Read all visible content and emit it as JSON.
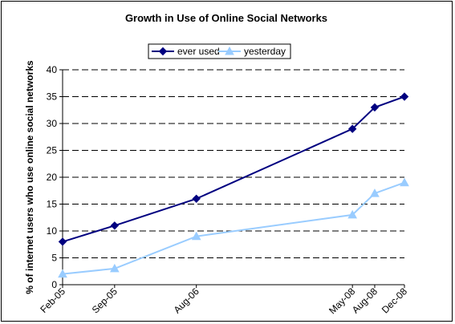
{
  "chart_data": {
    "type": "line",
    "title": "Growth in Use of Online Social Networks",
    "ylabel": "% of internet users who use online social networks",
    "xlabel": "",
    "ylim": [
      0,
      40
    ],
    "yticks": [
      0,
      5,
      10,
      15,
      20,
      25,
      30,
      35,
      40
    ],
    "x_dates": [
      "2005-02",
      "2005-09",
      "2006-08",
      "2008-05",
      "2008-08",
      "2008-12"
    ],
    "categories": [
      "Feb-05",
      "Sep-05",
      "Aug-06",
      "May-08",
      "Aug-08",
      "Dec-08"
    ],
    "grid": "horizontal dashed",
    "legend_position": "top",
    "series": [
      {
        "name": "ever used",
        "color": "#000080",
        "marker": "diamond",
        "values": [
          8,
          11,
          16,
          29,
          33,
          35
        ]
      },
      {
        "name": "yesterday",
        "color": "#99ccff",
        "marker": "triangle",
        "values": [
          2,
          3,
          9,
          13,
          17,
          19
        ]
      }
    ]
  }
}
